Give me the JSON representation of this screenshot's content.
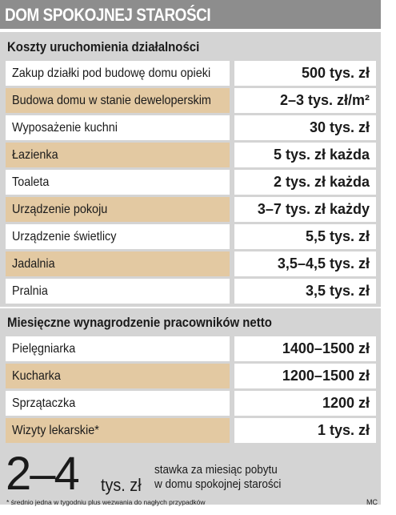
{
  "title": "DOM SPOKOJNEJ STAROŚCI",
  "sections": [
    {
      "title": "Koszty uruchomienia działalności",
      "rows": [
        {
          "label": "Zakup działki pod budowę domu opieki",
          "value": "500 tys. zł"
        },
        {
          "label": "Budowa domu w stanie deweloperskim",
          "value": "2–3 tys. zł/m²"
        },
        {
          "label": "Wyposażenie kuchni",
          "value": "30 tys. zł"
        },
        {
          "label": "Łazienka",
          "value": "5 tys. zł każda"
        },
        {
          "label": "Toaleta",
          "value": "2 tys. zł każda"
        },
        {
          "label": "Urządzenie pokoju",
          "value": "3–7 tys. zł każdy"
        },
        {
          "label": "Urządzenie świetlicy",
          "value": "5,5 tys. zł"
        },
        {
          "label": "Jadalnia",
          "value": "3,5–4,5 tys. zł"
        },
        {
          "label": "Pralnia",
          "value": "3,5 tys. zł"
        }
      ]
    },
    {
      "title": "Miesięczne wynagrodzenie pracowników netto",
      "rows": [
        {
          "label": "Pielęgniarka",
          "value": "1400–1500 zł"
        },
        {
          "label": "Kucharka",
          "value": "1200–1500 zł"
        },
        {
          "label": "Sprzątaczka",
          "value": "1200 zł"
        },
        {
          "label": "Wizyty lekarskie*",
          "value": "1 tys. zł"
        }
      ]
    }
  ],
  "summary": {
    "number": "2–4",
    "unit": "tys. zł",
    "description_line1": "stawka za miesiąc pobytu",
    "description_line2": "w domu spokojnej starości"
  },
  "footnote": "* średnio jedna w tygodniu plus wezwania do nagłych przypadków",
  "credit": "MC",
  "colors": {
    "banner": "#8d8d8d",
    "panel": "#d4d4d4",
    "row_alt": "#e3c9a2",
    "row": "#ffffff"
  }
}
